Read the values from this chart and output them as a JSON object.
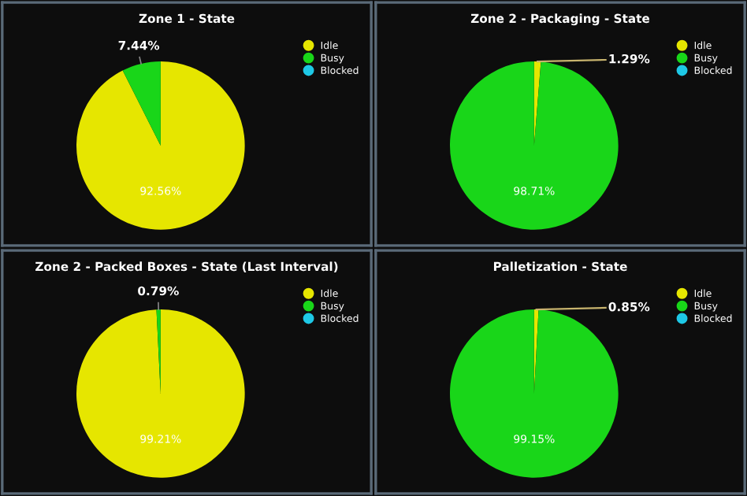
{
  "chart_data": [
    {
      "type": "pie",
      "title": "Zone 1 - State",
      "categories": [
        "Idle",
        "Busy",
        "Blocked"
      ],
      "values": [
        92.56,
        7.44,
        0
      ],
      "value_labels": [
        "92.56%",
        "7.44%",
        null
      ],
      "colors": [
        "#e6e600",
        "#19d619",
        "#1ec8e6"
      ],
      "legend": "top right"
    },
    {
      "type": "pie",
      "title": "Zone 2 - Packaging - State",
      "categories": [
        "Idle",
        "Busy",
        "Blocked"
      ],
      "values": [
        1.29,
        98.71,
        0
      ],
      "value_labels": [
        "1.29%",
        "98.71%",
        null
      ],
      "colors": [
        "#e6e600",
        "#19d619",
        "#1ec8e6"
      ],
      "legend": "top right"
    },
    {
      "type": "pie",
      "title": "Zone 2 - Packed Boxes - State (Last Interval)",
      "categories": [
        "Idle",
        "Busy",
        "Blocked"
      ],
      "values": [
        99.21,
        0.79,
        0
      ],
      "value_labels": [
        "99.21%",
        "0.79%",
        null
      ],
      "colors": [
        "#e6e600",
        "#19d619",
        "#1ec8e6"
      ],
      "legend": "top right"
    },
    {
      "type": "pie",
      "title": "Palletization - State",
      "categories": [
        "Idle",
        "Busy",
        "Blocked"
      ],
      "values": [
        0.85,
        99.15,
        0
      ],
      "value_labels": [
        "0.85%",
        "99.15%",
        null
      ],
      "colors": [
        "#e6e600",
        "#19d619",
        "#1ec8e6"
      ],
      "legend": "top right"
    }
  ]
}
